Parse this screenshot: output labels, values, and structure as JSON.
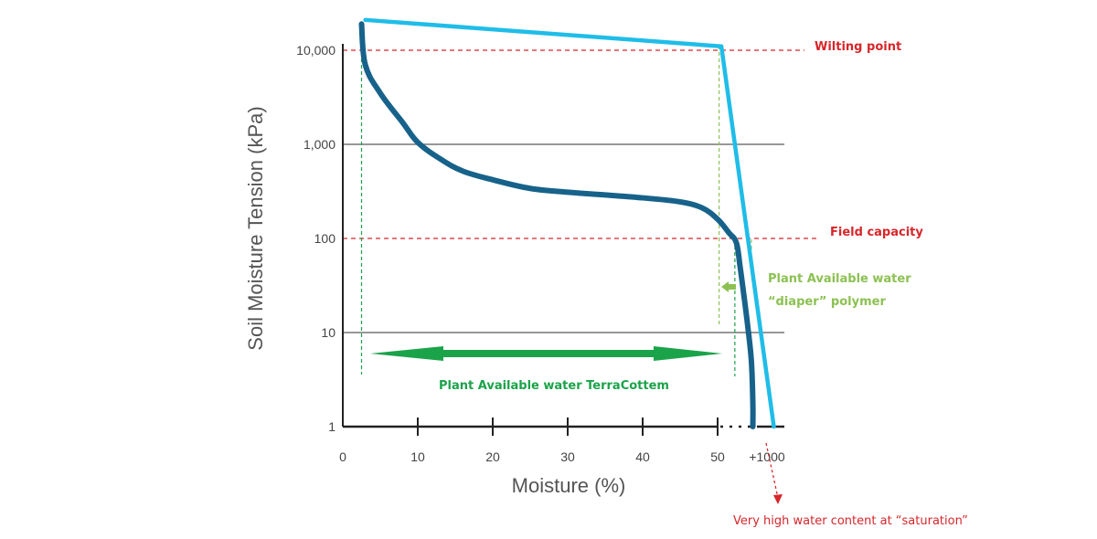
{
  "chart_data": {
    "type": "line",
    "xlabel": "Moisture (%)",
    "ylabel": "Soil Moisture Tension (kPa)",
    "y_scale": "log",
    "ylim": [
      1,
      10000
    ],
    "x_ticks": [
      {
        "value": 0,
        "label": "0"
      },
      {
        "value": 10,
        "label": "10"
      },
      {
        "value": 20,
        "label": "20"
      },
      {
        "value": 30,
        "label": "30"
      },
      {
        "value": 40,
        "label": "40"
      },
      {
        "value": 50,
        "label": "50"
      }
    ],
    "x_break_label": "+1000",
    "y_ticks": [
      {
        "value": 1,
        "label": "1"
      },
      {
        "value": 10,
        "label": "10"
      },
      {
        "value": 100,
        "label": "100"
      },
      {
        "value": 1000,
        "label": "1,000"
      },
      {
        "value": 10000,
        "label": "10,000"
      }
    ],
    "grid": true,
    "series": [
      {
        "color": "#17628a",
        "points": [
          [
            2.5,
            19000
          ],
          [
            3,
            7000
          ],
          [
            5,
            3500
          ],
          [
            8,
            1700
          ],
          [
            10,
            1050
          ],
          [
            13,
            700
          ],
          [
            16,
            520
          ],
          [
            20,
            420
          ],
          [
            25,
            340
          ],
          [
            30,
            310
          ],
          [
            35,
            290
          ],
          [
            40,
            270
          ],
          [
            45,
            245
          ],
          [
            48,
            210
          ],
          [
            50,
            160
          ],
          [
            51.5,
            115
          ],
          [
            52.5,
            90
          ],
          [
            53,
            50
          ],
          [
            53.5,
            25
          ],
          [
            54,
            12
          ],
          [
            54.5,
            5
          ],
          [
            54.7,
            1.8
          ],
          [
            54.7,
            1
          ]
        ]
      },
      {
        "color": "#1fbde8",
        "points": [
          [
            3,
            21000
          ],
          [
            50.5,
            11000
          ],
          [
            57.5,
            1
          ]
        ]
      }
    ],
    "reference_lines": [
      {
        "y": 10000,
        "label": "Wilting point",
        "color": "#d7262a"
      },
      {
        "y": 100,
        "label": "Field capacity",
        "color": "#d7262a"
      }
    ],
    "annotations": {
      "terracottem_label": "Plant Available water TerraCottem",
      "polymer_label_line1": "Plant Available water",
      "polymer_label_line2": "“diaper” polymer",
      "saturation_label": "Very high water content at “saturation”"
    },
    "colors": {
      "terracottem": "#1ba34a",
      "polymer": "#8cc152",
      "annotation_red": "#d7262a"
    }
  }
}
